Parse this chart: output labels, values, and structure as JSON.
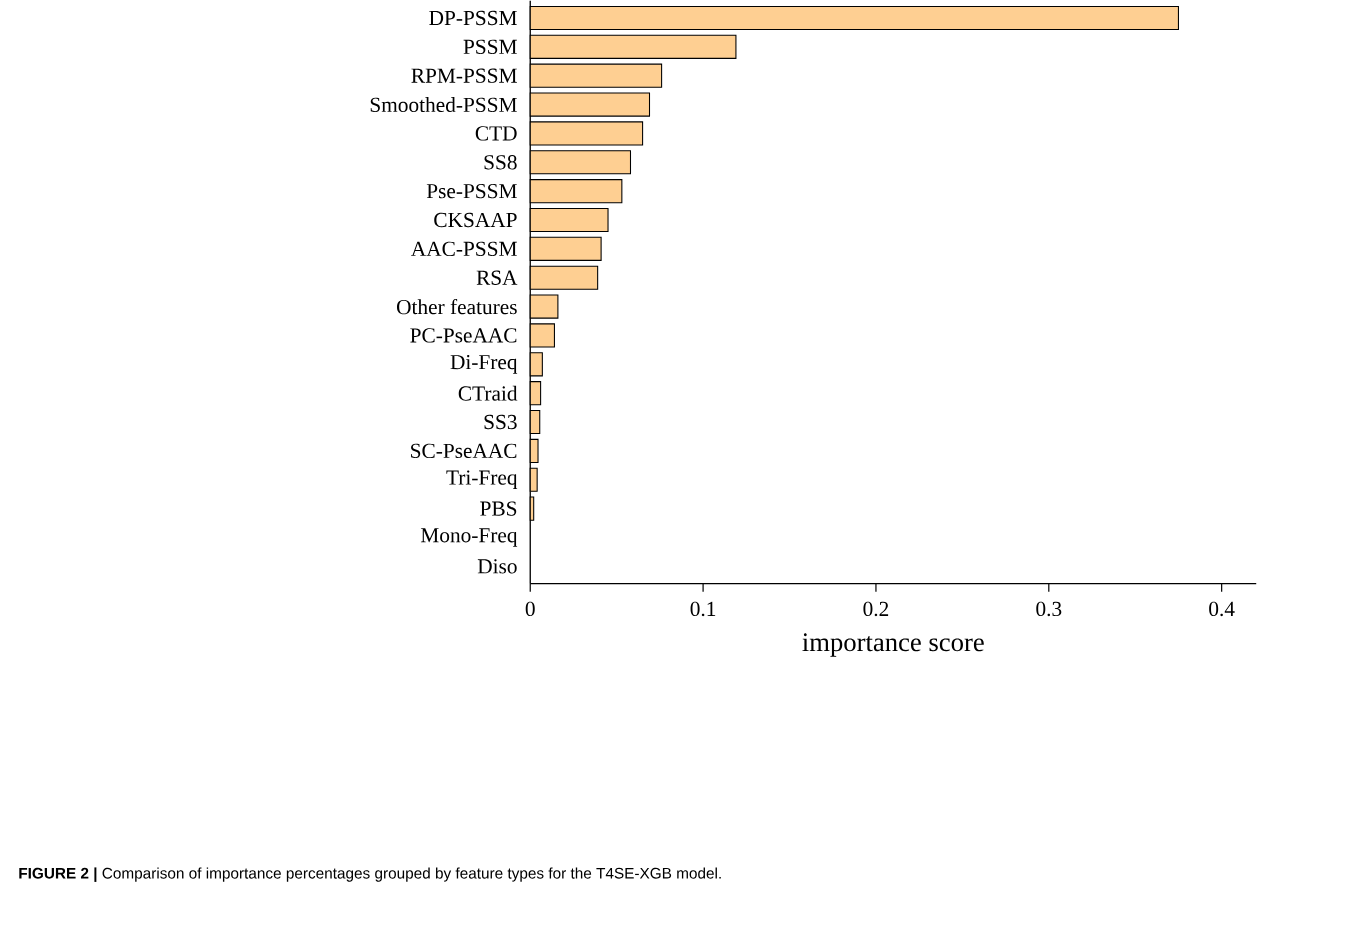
{
  "chart_data": {
    "type": "bar",
    "orientation": "horizontal",
    "categories": [
      "DP-PSSM",
      "PSSM",
      "RPM-PSSM",
      "Smoothed-PSSM",
      "CTD",
      "SS8",
      "Pse-PSSM",
      "CKSAAP",
      "AAC-PSSM",
      "RSA",
      "Other features",
      "PC-PseAAC",
      "Di-Freq",
      "CTraid",
      "SS3",
      "SC-PseAAC",
      "Tri-Freq",
      "PBS",
      "Mono-Freq",
      "Diso"
    ],
    "values": [
      0.375,
      0.119,
      0.076,
      0.069,
      0.065,
      0.058,
      0.053,
      0.045,
      0.041,
      0.039,
      0.016,
      0.014,
      0.007,
      0.006,
      0.0055,
      0.0045,
      0.004,
      0.002,
      0,
      0
    ],
    "color": "#fecf92",
    "xlim": [
      0,
      0.42
    ],
    "xticks": [
      0,
      0.1,
      0.2,
      0.3,
      0.4
    ],
    "xlabel": "importance score",
    "annotations": [
      "**FIGURE 2 |** Comparison of importance percentages grouped by feature types for the T4SE-XGB model."
    ]
  }
}
